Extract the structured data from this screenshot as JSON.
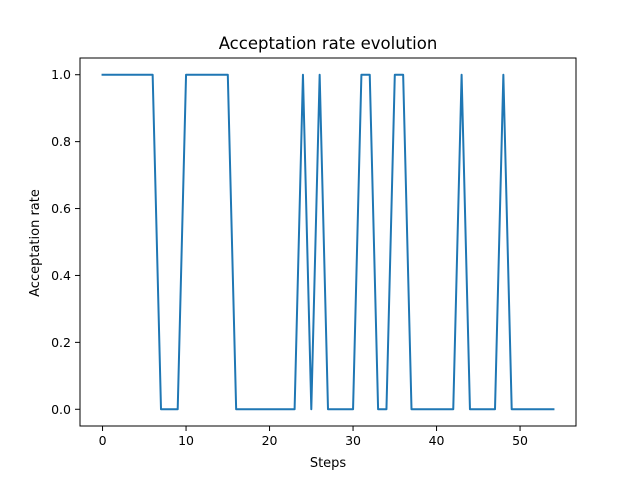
{
  "chart_data": {
    "type": "line",
    "title": "Acceptation rate evolution",
    "xlabel": "Steps",
    "ylabel": "Acceptation rate",
    "xlim": [
      -2.7,
      56.7
    ],
    "ylim": [
      -0.05,
      1.05
    ],
    "xticks": [
      0,
      10,
      20,
      30,
      40,
      50
    ],
    "yticks": [
      0.0,
      0.2,
      0.4,
      0.6,
      0.8,
      1.0
    ],
    "ytick_labels": [
      "0.0",
      "0.2",
      "0.4",
      "0.6",
      "0.8",
      "1.0"
    ],
    "grid": false,
    "series": [
      {
        "color": "#1f77b4",
        "x": [
          0,
          1,
          2,
          3,
          4,
          5,
          6,
          7,
          8,
          9,
          10,
          11,
          12,
          13,
          14,
          15,
          16,
          17,
          18,
          19,
          20,
          21,
          22,
          23,
          24,
          25,
          26,
          27,
          28,
          29,
          30,
          31,
          32,
          33,
          34,
          35,
          36,
          37,
          38,
          39,
          40,
          41,
          42,
          43,
          44,
          45,
          46,
          47,
          48,
          49,
          50,
          51,
          52,
          53,
          54
        ],
        "y": [
          1,
          1,
          1,
          1,
          1,
          1,
          1,
          0,
          0,
          0,
          1,
          1,
          1,
          1,
          1,
          1,
          0,
          0,
          0,
          0,
          0,
          0,
          0,
          0,
          1,
          0,
          1,
          0,
          0,
          0,
          0,
          1,
          1,
          0,
          0,
          1,
          1,
          0,
          0,
          0,
          0,
          0,
          0,
          1,
          0,
          0,
          0,
          0,
          1,
          0,
          0,
          0,
          0,
          0,
          0
        ]
      }
    ]
  }
}
